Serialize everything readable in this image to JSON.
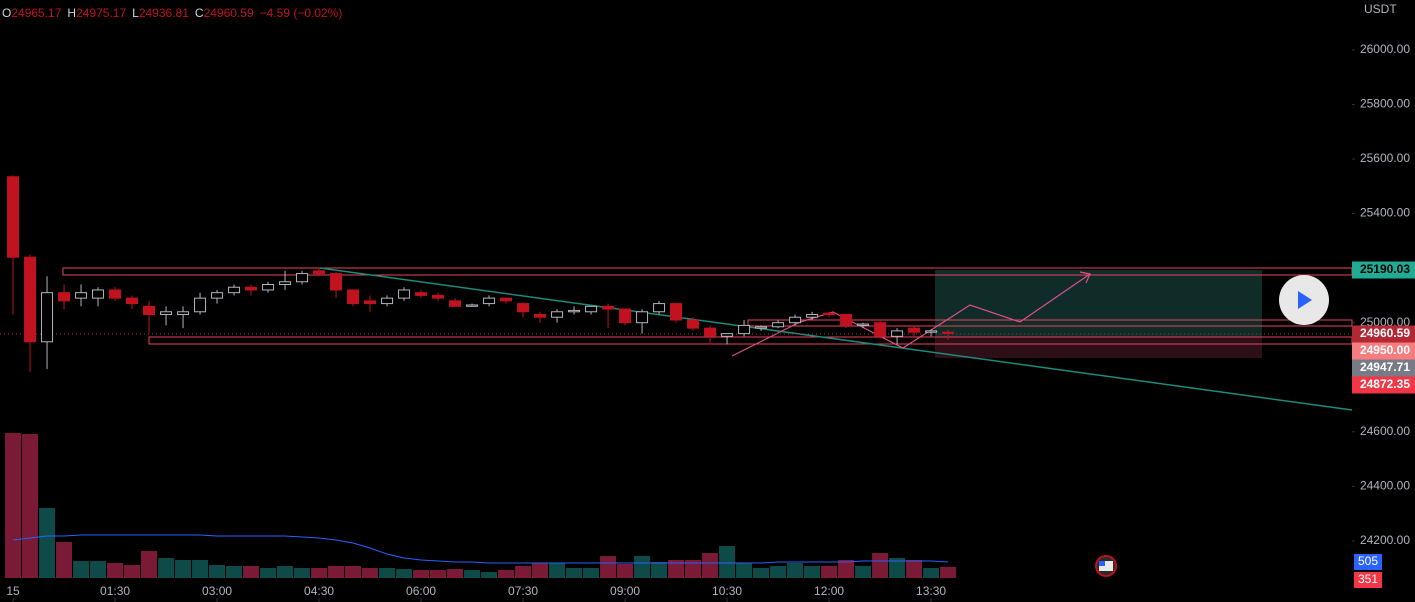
{
  "chart_data": {
    "type": "candlestick",
    "ohlc_header": [
      {
        "label": "O",
        "value": "24965.17"
      },
      {
        "label": "H",
        "value": "24975.17"
      },
      {
        "label": "L",
        "value": "24936.81"
      },
      {
        "label": "C",
        "value": "24960.59"
      }
    ],
    "change": "−4.59 (−0.02%)",
    "y_unit": "USDT",
    "up_color": "#b2b5be",
    "down_color": "#c1121f",
    "volume_up_color": "#0e4b48",
    "volume_down_color": "#7b1a36",
    "volume_ma_color": "#2962ff",
    "x": [
      0,
      15,
      30,
      45,
      60,
      75,
      90,
      105,
      120,
      135,
      150,
      165,
      180,
      195,
      210,
      225,
      240,
      255,
      270,
      285,
      300,
      315,
      330,
      345,
      360,
      375,
      390,
      405,
      420,
      435,
      450,
      465,
      480,
      495,
      510,
      525,
      540,
      555,
      570,
      585,
      600,
      615,
      630,
      645,
      660,
      675,
      690,
      705,
      720,
      735,
      750,
      765,
      780,
      795,
      810,
      825
    ],
    "open": [
      25535,
      25240,
      24930,
      25110,
      25090,
      25090,
      25120,
      25090,
      25060,
      25030,
      25030,
      25040,
      25090,
      25110,
      25130,
      25120,
      25140,
      25150,
      25190,
      25180,
      25120,
      25080,
      25070,
      25090,
      25110,
      25100,
      25080,
      25060,
      25070,
      25090,
      25070,
      25030,
      25020,
      25040,
      25040,
      25060,
      25050,
      25000,
      25040,
      25070,
      25010,
      24980,
      24950,
      24960,
      24980,
      24985,
      25000,
      25020,
      25035,
      25030,
      24990,
      25000,
      24950,
      24980,
      24965,
      24965.17
    ],
    "high": [
      25540,
      25250,
      25170,
      25140,
      25140,
      25130,
      25130,
      25100,
      25080,
      25060,
      25060,
      25110,
      25120,
      25140,
      25140,
      25150,
      25190,
      25190,
      25200,
      25185,
      25120,
      25100,
      25100,
      25130,
      25120,
      25110,
      25090,
      25070,
      25100,
      25090,
      25075,
      25040,
      25050,
      25060,
      25060,
      25070,
      25050,
      25050,
      25080,
      25070,
      25020,
      24990,
      24960,
      25010,
      24990,
      25010,
      25030,
      25040,
      25040,
      25030,
      25000,
      25010,
      24980,
      24990,
      24975,
      24975.17
    ],
    "low": [
      25030,
      24820,
      24830,
      25050,
      25060,
      25060,
      25080,
      25050,
      24960,
      24990,
      24980,
      25030,
      25070,
      25100,
      25100,
      25110,
      25120,
      25140,
      25170,
      25090,
      25060,
      25040,
      25060,
      25080,
      25090,
      25080,
      25060,
      25060,
      25060,
      25070,
      25020,
      25000,
      25000,
      25030,
      25030,
      24980,
      24990,
      24960,
      25030,
      25000,
      24970,
      24920,
      24920,
      24950,
      24970,
      24980,
      24990,
      25010,
      25020,
      24980,
      24980,
      24940,
      24920,
      24950,
      24950,
      24936.81
    ],
    "close": [
      25240,
      24930,
      25110,
      25080,
      25110,
      25120,
      25090,
      25070,
      25030,
      25040,
      25040,
      25090,
      25110,
      25130,
      25120,
      25140,
      25150,
      25180,
      25180,
      25120,
      25070,
      25070,
      25090,
      25120,
      25100,
      25090,
      25060,
      25065,
      25090,
      25080,
      25040,
      25020,
      25040,
      25045,
      25060,
      25050,
      25000,
      25040,
      25070,
      25010,
      24980,
      24950,
      24960,
      24990,
      24985,
      25000,
      25020,
      25030,
      25030,
      24990,
      24995,
      24950,
      24970,
      24965,
      24970,
      24960.59
    ],
    "volume": [
      4582,
      4550,
      2212,
      1138,
      537,
      537,
      474,
      411,
      853,
      632,
      569,
      569,
      411,
      379,
      379,
      316,
      379,
      316,
      316,
      379,
      379,
      316,
      316,
      284,
      253,
      253,
      284,
      253,
      190,
      253,
      379,
      474,
      474,
      316,
      316,
      695,
      442,
      695,
      506,
      569,
      569,
      790,
      1011,
      474,
      316,
      379,
      474,
      379,
      379,
      569,
      379,
      790,
      632,
      569,
      316,
      351
    ],
    "volume_ma": [
      1201,
      1264,
      1327,
      1327,
      1359,
      1359,
      1359,
      1359,
      1359,
      1359,
      1359,
      1359,
      1327,
      1327,
      1327,
      1327,
      1327,
      1296,
      1264,
      1201,
      1106,
      948,
      758,
      632,
      569,
      537,
      506,
      506,
      474,
      474,
      474,
      474,
      474,
      474,
      474,
      474,
      474,
      474,
      474,
      474,
      474,
      474,
      474,
      474,
      474,
      506,
      506,
      506,
      506,
      506,
      537,
      537,
      537,
      537,
      537,
      505
    ],
    "xlim": [
      -11.5,
      1181.4
    ],
    "xticks": [
      {
        "value": 0,
        "label": "15"
      },
      {
        "value": 90,
        "label": "01:30"
      },
      {
        "value": 180,
        "label": "03:00"
      },
      {
        "value": 270,
        "label": "04:30"
      },
      {
        "value": 360,
        "label": "06:00"
      },
      {
        "value": 450,
        "label": "07:30"
      },
      {
        "value": 540,
        "label": "09:00"
      },
      {
        "value": 630,
        "label": "10:30"
      },
      {
        "value": 720,
        "label": "12:00"
      },
      {
        "value": 810,
        "label": "13:30"
      }
    ],
    "ylim": [
      23976,
      26183
    ],
    "yticks": [
      {
        "value": 26000,
        "label": "26000.00"
      },
      {
        "value": 25800,
        "label": "25800.00"
      },
      {
        "value": 25600,
        "label": "25600.00"
      },
      {
        "value": 25400,
        "label": "25400.00"
      },
      {
        "value": 25000,
        "label": "25000.00"
      },
      {
        "value": 24600,
        "label": "24600.00"
      },
      {
        "value": 24400,
        "label": "24400.00"
      },
      {
        "value": 24200,
        "label": "24200.00"
      }
    ],
    "price_labels": [
      {
        "value": 25190.03,
        "label": "25190.03",
        "color": "#22ab94"
      },
      {
        "value": 24960.59,
        "label": "24960.59",
        "color": "#b22833"
      },
      {
        "value": 24950,
        "label": "24950.00",
        "color": "#f77c80"
      },
      {
        "value": 24947.71,
        "label": "24947.71",
        "color": "#787b86"
      },
      {
        "value": 24872.35,
        "label": "24872.35",
        "color": "#f23645"
      }
    ],
    "volume_labels": [
      {
        "value": 505,
        "label": "505",
        "color": "#2962ff"
      },
      {
        "value": 351,
        "label": "351",
        "color": "#f23645"
      }
    ]
  }
}
